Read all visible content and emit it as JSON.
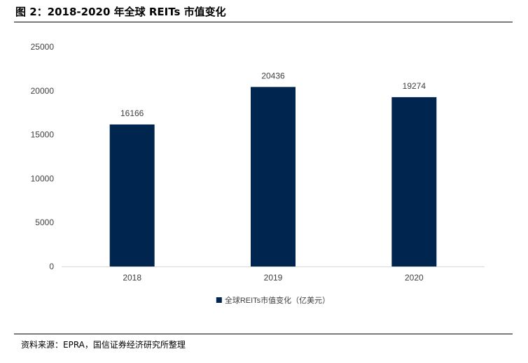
{
  "figure": {
    "title": "图 2：2018-2020 年全球 REITs 市值变化",
    "source": "资料来源：EPRA，国信证券经济研究所整理"
  },
  "colors": {
    "bar": "#002650",
    "axis": "#d9d9d9",
    "text": "#404040"
  },
  "chart_data": {
    "type": "bar",
    "categories": [
      "2018",
      "2019",
      "2020"
    ],
    "series": [
      {
        "name": "全球REITs市值变化（亿美元）",
        "values": [
          16166,
          20436,
          19274
        ]
      }
    ],
    "data_labels": [
      "16166",
      "20436",
      "19274"
    ],
    "ylim": [
      0,
      25000
    ],
    "yticks": [
      0,
      5000,
      10000,
      15000,
      20000,
      25000
    ],
    "grid": false,
    "legend": "bottom-center",
    "xlabel": "",
    "ylabel": ""
  }
}
